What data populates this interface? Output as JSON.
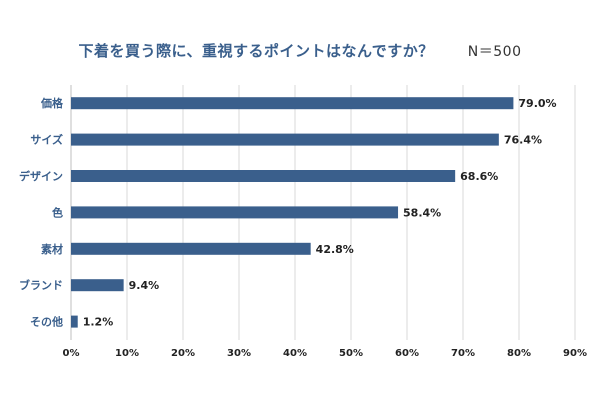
{
  "chart_data": {
    "type": "bar",
    "orientation": "horizontal",
    "title": "下着を買う際に、重視するポイントはなんですか？",
    "sample_note": "N＝500",
    "categories": [
      "価格",
      "サイズ",
      "デザイン",
      "色",
      "素材",
      "ブランド",
      "その他"
    ],
    "values": [
      79.0,
      76.4,
      68.6,
      58.4,
      42.8,
      9.4,
      1.2
    ],
    "value_labels": [
      "79.0%",
      "76.4%",
      "68.6%",
      "58.4%",
      "42.8%",
      "9.4%",
      "1.2%"
    ],
    "xlim": [
      0,
      90
    ],
    "x_ticks": [
      0,
      10,
      20,
      30,
      40,
      50,
      60,
      70,
      80,
      90
    ],
    "x_tick_labels": [
      "0%",
      "10%",
      "20%",
      "30%",
      "40%",
      "50%",
      "60%",
      "70%",
      "80%",
      "90%"
    ],
    "grid": "vertical",
    "bar_color": "#3a5f8c",
    "grid_color": "#d9d9d9"
  }
}
